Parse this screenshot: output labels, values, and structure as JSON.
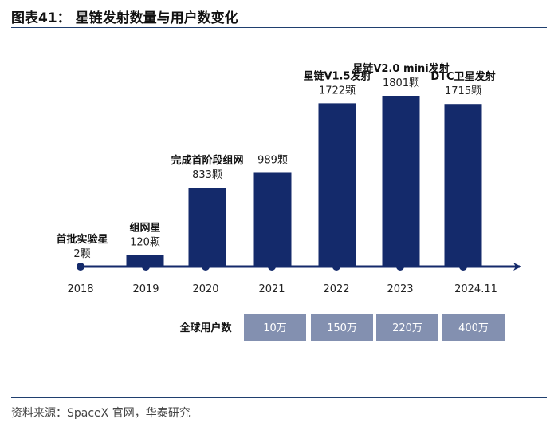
{
  "title": "图表41：  星链发射数量与用户数变化",
  "source": "资料来源：SpaceX 官网，华泰研究",
  "chart_data": {
    "type": "bar",
    "title": "星链发射数量与用户数变化",
    "categories": [
      "2018",
      "2019",
      "2020",
      "2021",
      "2022",
      "2023",
      "2024.11"
    ],
    "values": [
      2,
      120,
      833,
      989,
      1722,
      1801,
      1715
    ],
    "value_labels": [
      "2颗",
      "120颗",
      "833颗",
      "989颗",
      "1722颗",
      "1801颗",
      "1715颗"
    ],
    "milestones": [
      "首批实验星",
      "组网星",
      "完成首阶段组网",
      "",
      "星链V1.5发射",
      "星链V2.0 mini发射",
      "DTC卫星发射"
    ],
    "unit": "颗",
    "ylim": [
      0,
      1900
    ],
    "users": {
      "label": "全球用户数",
      "categories": [
        "2021",
        "2022",
        "2023",
        "2024.11"
      ],
      "values": [
        "10万",
        "150万",
        "220万",
        "400万"
      ]
    },
    "colors": {
      "bar": "#142a6b",
      "axis": "#142a6b",
      "user_cell": "#8390b0"
    }
  }
}
